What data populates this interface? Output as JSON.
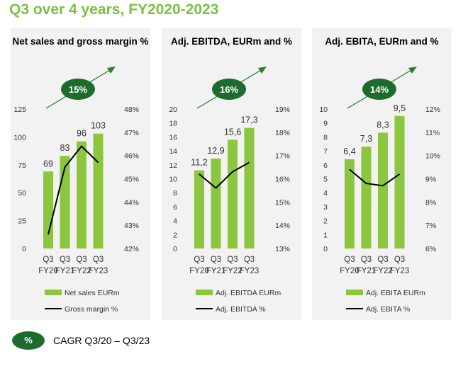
{
  "page": {
    "title": "Q3 over 4 years, FY2020-2023",
    "footnote": {
      "badge": "%",
      "text": "CAGR Q3/20 – Q3/23"
    }
  },
  "colors": {
    "bar": "#8cc63f",
    "line": "#000000",
    "badge": "#1e6b2e",
    "arrow": "#2e7d32",
    "title": "#7ac142"
  },
  "chart_data": [
    {
      "type": "bar",
      "title": "Net sales and gross margin %",
      "categories": [
        [
          "Q3",
          "FY20"
        ],
        [
          "Q3",
          "FY21"
        ],
        [
          "Q3",
          "FY22"
        ],
        [
          "Q3",
          "FY23"
        ]
      ],
      "series": [
        {
          "name": "Net sales EURm",
          "type": "bar",
          "axis": "left",
          "values": [
            69,
            83,
            96,
            103
          ],
          "labels": [
            "69",
            "83",
            "96",
            "103"
          ]
        },
        {
          "name": "Gross margin %",
          "type": "line",
          "axis": "right",
          "values": [
            42.6,
            45.5,
            46.4,
            45.7
          ]
        }
      ],
      "y_left": {
        "min": 0,
        "max": 125,
        "ticks": [
          "0",
          "25",
          "50",
          "75",
          "100",
          "125"
        ]
      },
      "y_right": {
        "min": 42,
        "max": 48,
        "ticks": [
          "42%",
          "43%",
          "44%",
          "45%",
          "46%",
          "47%",
          "48%"
        ]
      },
      "cagr": "15%",
      "legend_position": "bottom"
    },
    {
      "type": "bar",
      "title": "Adj. EBITDA, EURm and %",
      "categories": [
        [
          "Q3",
          "FY20"
        ],
        [
          "Q3",
          "FY21"
        ],
        [
          "Q3",
          "FY22"
        ],
        [
          "Q3",
          "FY23"
        ]
      ],
      "series": [
        {
          "name": "Adj. EBITDA EURm",
          "type": "bar",
          "axis": "left",
          "values": [
            11.2,
            12.9,
            15.6,
            17.3
          ],
          "labels": [
            "11,2",
            "12,9",
            "15,6",
            "17,3"
          ]
        },
        {
          "name": "Adj. EBITDA %",
          "type": "line",
          "axis": "right",
          "values": [
            16.2,
            15.6,
            16.3,
            16.7
          ]
        }
      ],
      "y_left": {
        "min": 0,
        "max": 20,
        "ticks": [
          "0",
          "2",
          "4",
          "6",
          "8",
          "10",
          "12",
          "14",
          "16",
          "18",
          "20"
        ]
      },
      "y_right": {
        "min": 13,
        "max": 19,
        "ticks": [
          "13%",
          "14%",
          "15%",
          "16%",
          "17%",
          "18%",
          "19%"
        ]
      },
      "cagr": "16%",
      "legend_position": "bottom"
    },
    {
      "type": "bar",
      "title": "Adj. EBITA, EURm and %",
      "categories": [
        [
          "Q3",
          "FY20"
        ],
        [
          "Q3",
          "FY21"
        ],
        [
          "Q3",
          "FY22"
        ],
        [
          "Q3",
          "FY23"
        ]
      ],
      "series": [
        {
          "name": "Adj. EBITA EURm",
          "type": "bar",
          "axis": "left",
          "values": [
            6.4,
            7.3,
            8.3,
            9.5
          ],
          "labels": [
            "6,4",
            "7,3",
            "8,3",
            "9,5"
          ]
        },
        {
          "name": "Adj. EBITA %",
          "type": "line",
          "axis": "right",
          "values": [
            9.4,
            8.8,
            8.7,
            9.2
          ]
        }
      ],
      "y_left": {
        "min": 0,
        "max": 10,
        "ticks": [
          "0",
          "1",
          "2",
          "3",
          "4",
          "5",
          "6",
          "7",
          "8",
          "9",
          "10"
        ]
      },
      "y_right": {
        "min": 6,
        "max": 12,
        "ticks": [
          "6%",
          "7%",
          "8%",
          "9%",
          "10%",
          "11%",
          "12%"
        ]
      },
      "cagr": "14%",
      "legend_position": "bottom"
    }
  ]
}
